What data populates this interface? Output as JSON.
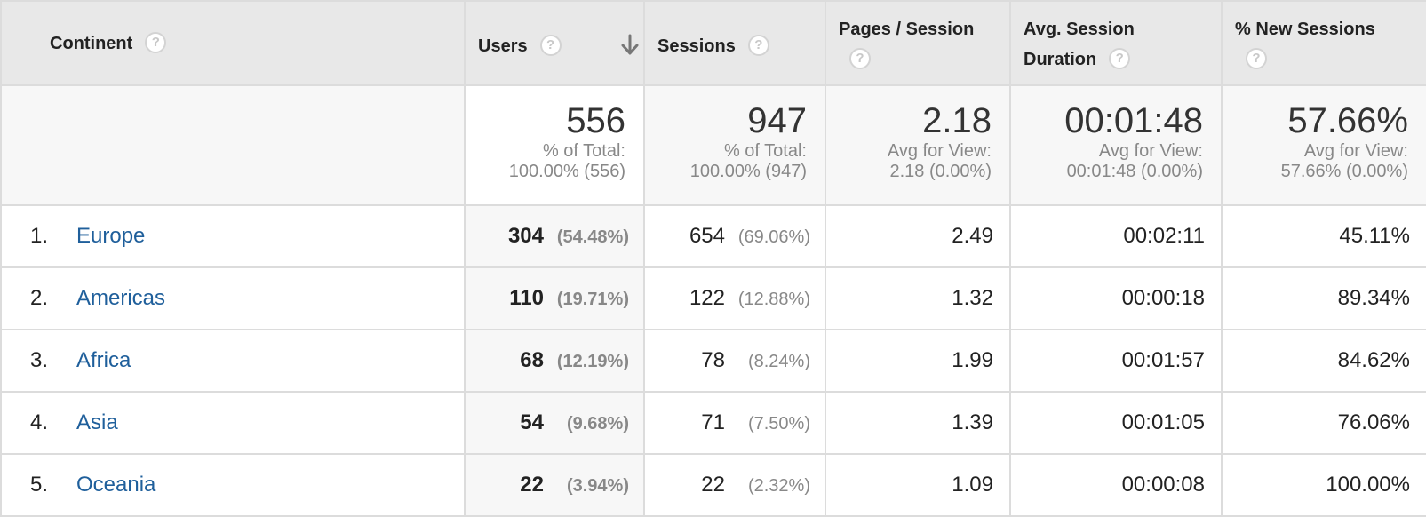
{
  "headers": {
    "continent": "Continent",
    "users": "Users",
    "sessions": "Sessions",
    "pages_per_session": "Pages / Session",
    "avg_session_duration_line1": "Avg. Session",
    "avg_session_duration_line2": "Duration",
    "new_sessions": "% New Sessions",
    "help_glyph": "?"
  },
  "icons": {
    "help": "help-icon",
    "sort": "sort-descending-arrow-icon"
  },
  "totals": {
    "users": {
      "value": "556",
      "line1": "% of Total:",
      "line2": "100.00% (556)"
    },
    "sessions": {
      "value": "947",
      "line1": "% of Total:",
      "line2": "100.00% (947)"
    },
    "pages_per_session": {
      "value": "2.18",
      "line1": "Avg for View:",
      "line2": "2.18 (0.00%)"
    },
    "avg_session_duration": {
      "value": "00:01:48",
      "line1": "Avg for View:",
      "line2": "00:01:48 (0.00%)"
    },
    "new_sessions": {
      "value": "57.66%",
      "line1": "Avg for View:",
      "line2": "57.66% (0.00%)"
    }
  },
  "rows": [
    {
      "index": "1.",
      "continent": "Europe",
      "users": "304",
      "users_pct": "(54.48%)",
      "sessions": "654",
      "sessions_pct": "(69.06%)",
      "pages_per_session": "2.49",
      "avg_session_duration": "00:02:11",
      "new_sessions": "45.11%"
    },
    {
      "index": "2.",
      "continent": "Americas",
      "users": "110",
      "users_pct": "(19.71%)",
      "sessions": "122",
      "sessions_pct": "(12.88%)",
      "pages_per_session": "1.32",
      "avg_session_duration": "00:00:18",
      "new_sessions": "89.34%"
    },
    {
      "index": "3.",
      "continent": "Africa",
      "users": "68",
      "users_pct": "(12.19%)",
      "sessions": "78",
      "sessions_pct": "(8.24%)",
      "pages_per_session": "1.99",
      "avg_session_duration": "00:01:57",
      "new_sessions": "84.62%"
    },
    {
      "index": "4.",
      "continent": "Asia",
      "users": "54",
      "users_pct": "(9.68%)",
      "sessions": "71",
      "sessions_pct": "(7.50%)",
      "pages_per_session": "1.39",
      "avg_session_duration": "00:01:05",
      "new_sessions": "76.06%"
    },
    {
      "index": "5.",
      "continent": "Oceania",
      "users": "22",
      "users_pct": "(3.94%)",
      "sessions": "22",
      "sessions_pct": "(2.32%)",
      "pages_per_session": "1.09",
      "avg_session_duration": "00:00:08",
      "new_sessions": "100.00%"
    }
  ],
  "colors": {
    "link": "#1f5f9b",
    "header_bg": "#e8e8e8",
    "totals_bg": "#f7f7f7",
    "border": "#dcdcdc",
    "muted_text": "#888888"
  }
}
